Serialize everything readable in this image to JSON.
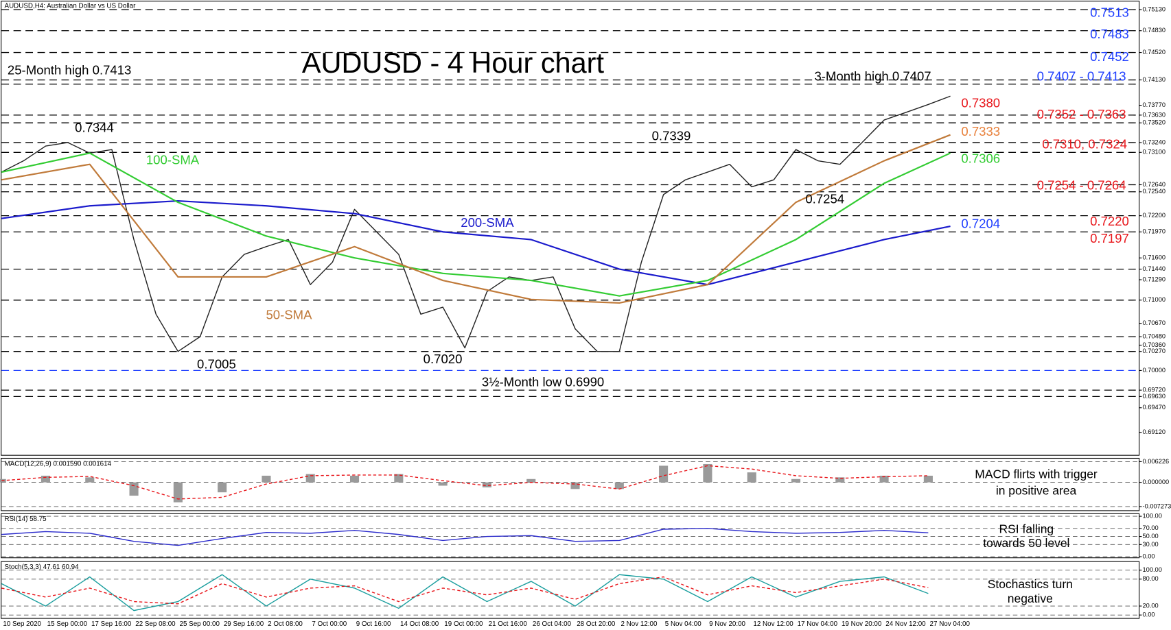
{
  "chart_data": [
    {
      "type": "line",
      "title": "AUDUSD - 4 Hour chart",
      "subtitle": "AUDUSD,H4:  Australian Dollar vs US Dollar",
      "categories": [
        "10 Sep 2020",
        "15 Sep 00:00",
        "17 Sep 16:00",
        "22 Sep 08:00",
        "25 Sep 00:00",
        "29 Sep 16:00",
        "2 Oct 08:00",
        "7 Oct 00:00",
        "9 Oct 16:00",
        "14 Oct 08:00",
        "19 Oct 00:00",
        "21 Oct 16:00",
        "26 Oct 04:00",
        "28 Oct 20:00",
        "2 Nov 12:00",
        "5 Nov 04:00",
        "9 Nov 20:00",
        "12 Nov 12:00",
        "17 Nov 04:00",
        "19 Nov 20:00",
        "24 Nov 12:00",
        "27 Nov 04:00"
      ],
      "xlim": [
        0,
        25.77
      ],
      "ylim": [
        0.6881,
        0.75245
      ],
      "yticks": [
        {
          "value": 0.7513,
          "label": "0.75130"
        },
        {
          "value": 0.7483,
          "label": "0.74830"
        },
        {
          "value": 0.7452,
          "label": "0.74520"
        },
        {
          "value": 0.7413,
          "label": "0.74130"
        },
        {
          "value": 0.7377,
          "label": "0.73770"
        },
        {
          "value": 0.7363,
          "label": "0.73630"
        },
        {
          "value": 0.7352,
          "label": "0.73520"
        },
        {
          "value": 0.7324,
          "label": "0.73240"
        },
        {
          "value": 0.731,
          "label": "0.73100"
        },
        {
          "value": 0.7264,
          "label": "0.72640"
        },
        {
          "value": 0.7254,
          "label": "0.72540"
        },
        {
          "value": 0.722,
          "label": "0.72200"
        },
        {
          "value": 0.7197,
          "label": "0.71970"
        },
        {
          "value": 0.716,
          "label": "0.71600"
        },
        {
          "value": 0.7144,
          "label": "0.71440"
        },
        {
          "value": 0.7129,
          "label": "0.71290"
        },
        {
          "value": 0.71,
          "label": "0.71000"
        },
        {
          "value": 0.7067,
          "label": "0.70670"
        },
        {
          "value": 0.7048,
          "label": "0.70480"
        },
        {
          "value": 0.7036,
          "label": "0.70360"
        },
        {
          "value": 0.7027,
          "label": "0.70270"
        },
        {
          "value": 0.7,
          "label": "0.70000"
        },
        {
          "value": 0.6972,
          "label": "0.69720"
        },
        {
          "value": 0.6963,
          "label": "0.69630"
        },
        {
          "value": 0.6947,
          "label": "0.69470"
        },
        {
          "value": 0.6912,
          "label": "0.69120"
        }
      ],
      "grid": false,
      "levels": [
        {
          "value": 0.7513,
          "color": "#000000"
        },
        {
          "value": 0.7483,
          "color": "#000000"
        },
        {
          "value": 0.7452,
          "color": "#000000"
        },
        {
          "value": 0.7413,
          "color": "#000000"
        },
        {
          "value": 0.7407,
          "color": "#000000"
        },
        {
          "value": 0.7363,
          "color": "#000000"
        },
        {
          "value": 0.7352,
          "color": "#000000"
        },
        {
          "value": 0.7324,
          "color": "#000000"
        },
        {
          "value": 0.731,
          "color": "#000000"
        },
        {
          "value": 0.7264,
          "color": "#000000"
        },
        {
          "value": 0.7254,
          "color": "#000000"
        },
        {
          "value": 0.722,
          "color": "#000000"
        },
        {
          "value": 0.7197,
          "color": "#000000"
        },
        {
          "value": 0.7144,
          "color": "#000000"
        },
        {
          "value": 0.71,
          "color": "#000000"
        },
        {
          "value": 0.7048,
          "color": "#000000"
        },
        {
          "value": 0.7027,
          "color": "#000000"
        },
        {
          "value": 0.7,
          "color": "#1f3fff"
        },
        {
          "value": 0.6972,
          "color": "#000000"
        },
        {
          "value": 0.6963,
          "color": "#000000"
        }
      ],
      "series": [
        {
          "color": "#222222",
          "x": [
            0,
            0.5,
            1,
            1.5,
            2,
            2.5,
            3,
            3.5,
            4,
            4.5,
            5,
            5.5,
            6,
            6.5,
            7,
            7.5,
            8,
            8.5,
            9,
            9.5,
            10,
            10.5,
            11,
            11.5,
            12,
            12.5,
            13,
            13.5,
            14,
            14.5,
            15,
            15.5,
            16,
            16.5,
            17,
            17.5,
            18,
            18.5,
            19,
            19.5,
            20,
            20.5,
            21,
            21.5
          ],
          "values": [
            0.7282,
            0.7298,
            0.7319,
            0.7324,
            0.7309,
            0.7314,
            0.7186,
            0.708,
            0.7027,
            0.7048,
            0.7133,
            0.7165,
            0.7176,
            0.7186,
            0.7122,
            0.7154,
            0.7229,
            0.7197,
            0.7165,
            0.708,
            0.709,
            0.7032,
            0.7112,
            0.7133,
            0.7128,
            0.7133,
            0.7059,
            0.7027,
            0.7027,
            0.7154,
            0.725,
            0.7271,
            0.7282,
            0.7293,
            0.7261,
            0.7271,
            0.7314,
            0.7298,
            0.7293,
            0.7324,
            0.7356,
            0.7367,
            0.7378,
            0.739
          ]
        },
        {
          "name": "200-SMA",
          "color": "#1a1acc",
          "x": [
            0,
            2,
            4,
            6,
            8,
            10,
            12,
            14,
            16,
            18,
            20,
            21.5
          ],
          "values": [
            0.7216,
            0.7234,
            0.7241,
            0.7234,
            0.7223,
            0.7197,
            0.7186,
            0.7144,
            0.7122,
            0.7154,
            0.7186,
            0.7205
          ]
        },
        {
          "name": "100-SMA",
          "color": "#33cc33",
          "x": [
            0,
            2,
            4,
            6,
            8,
            10,
            12,
            14,
            16,
            18,
            20,
            21.5
          ],
          "values": [
            0.7282,
            0.7309,
            0.7239,
            0.7191,
            0.716,
            0.7138,
            0.7128,
            0.7106,
            0.7128,
            0.7186,
            0.7266,
            0.7309
          ]
        },
        {
          "name": "50-SMA",
          "color": "#c07a3a",
          "x": [
            0,
            2,
            4,
            6,
            8,
            10,
            12,
            14,
            16,
            18,
            20,
            21.5
          ],
          "values": [
            0.7271,
            0.7293,
            0.7133,
            0.7133,
            0.7176,
            0.7128,
            0.7101,
            0.7096,
            0.7122,
            0.7239,
            0.7298,
            0.7335
          ]
        }
      ],
      "annotations": [
        {
          "text": "25-Month high 0.7413",
          "color": "#000000"
        },
        {
          "text": "0.7344",
          "color": "#000000"
        },
        {
          "text": "0.7339",
          "color": "#000000"
        },
        {
          "text": "3-Month high 0.7407",
          "color": "#000000"
        },
        {
          "text": "0.7254",
          "color": "#000000"
        },
        {
          "text": "0.7005",
          "color": "#000000"
        },
        {
          "text": "0.7020",
          "color": "#000000"
        },
        {
          "text": "3½-Month low 0.6990",
          "color": "#000000"
        },
        {
          "text": "0.7513",
          "color": "#1f3fff"
        },
        {
          "text": "0.7483",
          "color": "#1f3fff"
        },
        {
          "text": "0.7452",
          "color": "#1f3fff"
        },
        {
          "text": "0.7407 - 0.7413",
          "color": "#1f3fff"
        },
        {
          "text": "0.7380",
          "color": "#e8161b"
        },
        {
          "text": "0.7352 - 0.7363",
          "color": "#e8161b"
        },
        {
          "text": "0.7333",
          "color": "#e8803a"
        },
        {
          "text": "0.7310, 0.7324",
          "color": "#e8161b"
        },
        {
          "text": "0.7306",
          "color": "#33cc33"
        },
        {
          "text": "0.7254 - 0.7264",
          "color": "#e8161b"
        },
        {
          "text": "0.7204",
          "color": "#1f3fff"
        },
        {
          "text": "0.7220",
          "color": "#e8161b"
        },
        {
          "text": "0.7197",
          "color": "#e8161b"
        }
      ]
    },
    {
      "type": "line",
      "title": "MACD(12,26,9) 0.001590 0.001614",
      "ylim": [
        -0.0084,
        0.00735
      ],
      "yticks": [
        {
          "value": 0.006226,
          "label": "0.006226"
        },
        {
          "value": 0,
          "label": "0.000000"
        },
        {
          "value": -0.007273,
          "label": "-0.007273"
        }
      ],
      "grid": true,
      "series": [
        {
          "kind": "bar",
          "color": "#9a9a9a",
          "values": [
            0.001,
            0.002,
            0.0015,
            -0.004,
            -0.006,
            -0.003,
            0.002,
            0.0025,
            0.002,
            0.0025,
            -0.001,
            -0.0015,
            0.001,
            -0.002,
            -0.002,
            0.005,
            0.0055,
            0.003,
            0.001,
            0.0015,
            0.002,
            0.002
          ]
        },
        {
          "color": "#e8161b",
          "dashed": true,
          "values": [
            0.0005,
            0.0015,
            0.0018,
            -0.001,
            -0.005,
            -0.0045,
            -0.0005,
            0.002,
            0.0022,
            0.0022,
            0.0005,
            -0.001,
            0,
            -0.0005,
            -0.002,
            0.002,
            0.005,
            0.004,
            0.002,
            0.0012,
            0.0017,
            0.002
          ]
        }
      ],
      "annotations": [
        {
          "text": "MACD flirts with trigger",
          "color": "#000000"
        },
        {
          "text": "in positive area",
          "color": "#000000"
        }
      ]
    },
    {
      "type": "line",
      "title": "RSI(14) 58.75",
      "ylim": [
        -1.9,
        107.4
      ],
      "yticks": [
        {
          "value": 100,
          "label": "100.00"
        },
        {
          "value": 70,
          "label": "70.00"
        },
        {
          "value": 50,
          "label": "50.00"
        },
        {
          "value": 30,
          "label": "30.00"
        },
        {
          "value": 0,
          "label": "0.00"
        }
      ],
      "grid": true,
      "series": [
        {
          "color": "#2b2bcc",
          "values": [
            55,
            62,
            58,
            38,
            28,
            45,
            60,
            58,
            65,
            55,
            40,
            50,
            52,
            38,
            40,
            68,
            70,
            62,
            58,
            60,
            65,
            59
          ]
        }
      ],
      "annotations": [
        {
          "text": "RSI falling",
          "color": "#000000"
        },
        {
          "text": "towards 50 level",
          "color": "#000000"
        }
      ]
    },
    {
      "type": "line",
      "title": "Stoch(5,3,3) 47.61 60.94",
      "ylim": [
        -6.7,
        120
      ],
      "yticks": [
        {
          "value": 100,
          "label": "100.00"
        },
        {
          "value": 80,
          "label": "80.00"
        },
        {
          "value": 20,
          "label": "20.00"
        },
        {
          "value": 0,
          "label": "0.00"
        }
      ],
      "grid": true,
      "series": [
        {
          "color": "#1a9e9e",
          "values": [
            70,
            20,
            85,
            10,
            30,
            90,
            20,
            80,
            60,
            15,
            85,
            30,
            75,
            20,
            90,
            80,
            30,
            85,
            40,
            75,
            85,
            48
          ]
        },
        {
          "color": "#e8161b",
          "dashed": true,
          "values": [
            60,
            40,
            60,
            30,
            25,
            70,
            40,
            60,
            65,
            30,
            60,
            45,
            60,
            35,
            70,
            85,
            45,
            65,
            50,
            65,
            80,
            61
          ]
        }
      ],
      "annotations": [
        {
          "text": "Stochastics turn",
          "color": "#000000"
        },
        {
          "text": "negative",
          "color": "#000000"
        }
      ]
    }
  ]
}
